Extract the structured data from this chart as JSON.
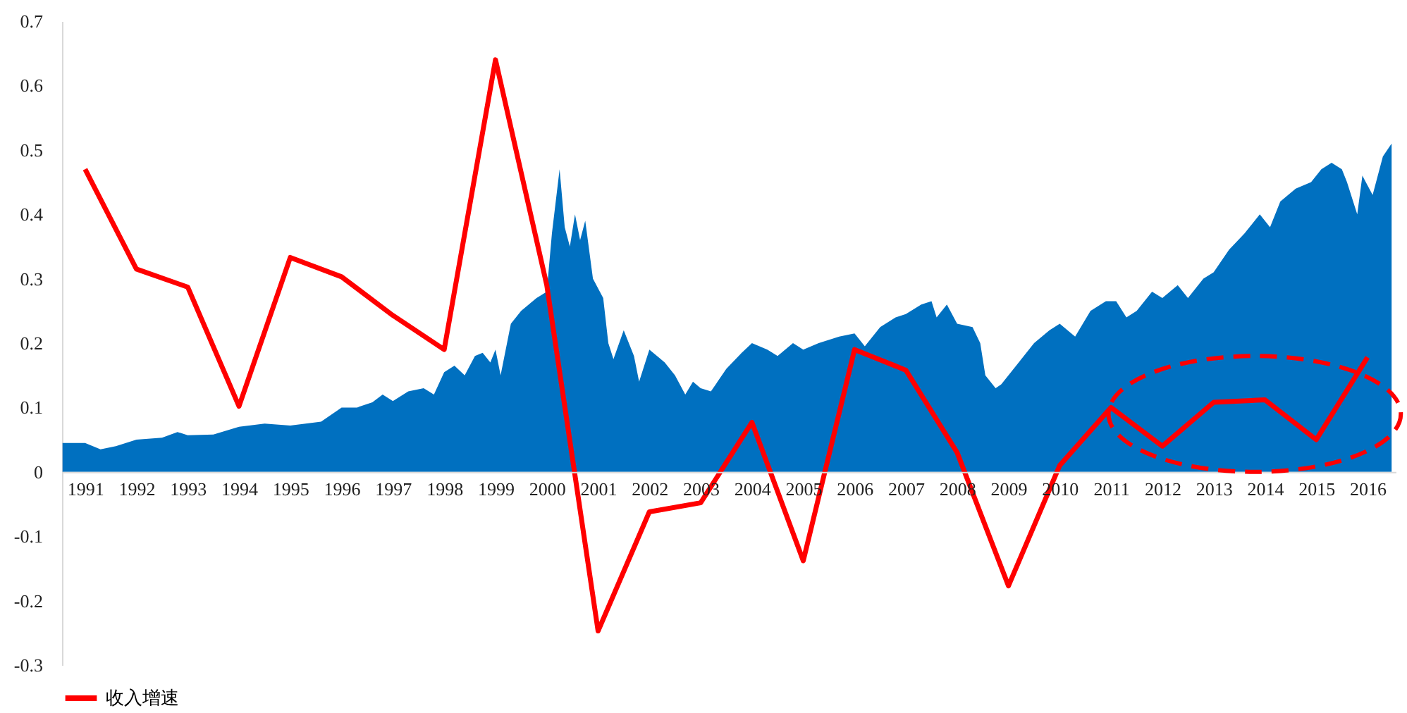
{
  "chart_data": {
    "type": "line",
    "legend": "bottom",
    "xlim": [
      1990.55,
      2016.55
    ],
    "ylim": [
      -0.3,
      0.7
    ],
    "xticks": [
      1991,
      1992,
      1993,
      1994,
      1995,
      1996,
      1997,
      1998,
      1999,
      2000,
      2001,
      2002,
      2003,
      2004,
      2005,
      2006,
      2007,
      2008,
      2009,
      2010,
      2011,
      2012,
      2013,
      2014,
      2015,
      2016
    ],
    "yticks": [
      -0.3,
      -0.2,
      -0.1,
      0,
      0.1,
      0.2,
      0.3,
      0.4,
      0.5,
      0.6,
      0.7
    ],
    "series": [
      {
        "type": "area",
        "color": "#0070c0",
        "x": [
          1990.56,
          1991,
          1991.3,
          1991.6,
          1992,
          1992.5,
          1992.8,
          1993,
          1993.5,
          1994,
          1994.5,
          1995,
          1995.3,
          1995.6,
          1996,
          1996.3,
          1996.6,
          1996.8,
          1997,
          1997.3,
          1997.6,
          1997.8,
          1998,
          1998.2,
          1998.4,
          1998.6,
          1998.75,
          1998.9,
          1999,
          1999.1,
          1999.3,
          1999.5,
          1999.8,
          2000,
          2000.1,
          2000.25,
          2000.35,
          2000.45,
          2000.55,
          2000.65,
          2000.75,
          2000.9,
          2001.1,
          2001.2,
          2001.3,
          2001.5,
          2001.7,
          2001.8,
          2002,
          2002.3,
          2002.5,
          2002.7,
          2002.85,
          2003,
          2003.2,
          2003.5,
          2003.8,
          2004,
          2004.3,
          2004.5,
          2004.8,
          2005,
          2005.3,
          2005.7,
          2006,
          2006.2,
          2006.5,
          2006.8,
          2007,
          2007.3,
          2007.5,
          2007.6,
          2007.8,
          2008,
          2008.3,
          2008.45,
          2008.55,
          2008.75,
          2008.86,
          2009.2,
          2009.5,
          2009.8,
          2010,
          2010.3,
          2010.6,
          2010.9,
          2011.1,
          2011.3,
          2011.5,
          2011.8,
          2012,
          2012.3,
          2012.5,
          2012.8,
          2013,
          2013.3,
          2013.6,
          2013.9,
          2014.1,
          2014.3,
          2014.6,
          2014.9,
          2015.1,
          2015.3,
          2015.5,
          2015.6,
          2015.8,
          2015.9,
          2016.1,
          2016.3,
          2016.47
        ],
        "values": [
          0.045,
          0.045,
          0.035,
          0.04,
          0.05,
          0.053,
          0.062,
          0.057,
          0.058,
          0.07,
          0.075,
          0.072,
          0.075,
          0.078,
          0.1,
          0.1,
          0.108,
          0.12,
          0.11,
          0.125,
          0.13,
          0.12,
          0.155,
          0.165,
          0.15,
          0.18,
          0.185,
          0.17,
          0.19,
          0.15,
          0.23,
          0.25,
          0.27,
          0.28,
          0.37,
          0.47,
          0.38,
          0.35,
          0.4,
          0.36,
          0.39,
          0.3,
          0.27,
          0.2,
          0.175,
          0.22,
          0.18,
          0.14,
          0.19,
          0.17,
          0.15,
          0.12,
          0.14,
          0.13,
          0.125,
          0.16,
          0.185,
          0.2,
          0.19,
          0.18,
          0.2,
          0.19,
          0.2,
          0.21,
          0.215,
          0.195,
          0.225,
          0.24,
          0.245,
          0.26,
          0.265,
          0.24,
          0.26,
          0.23,
          0.225,
          0.2,
          0.15,
          0.13,
          0.136,
          0.17,
          0.2,
          0.22,
          0.23,
          0.21,
          0.25,
          0.265,
          0.265,
          0.24,
          0.25,
          0.28,
          0.27,
          0.29,
          0.27,
          0.3,
          0.31,
          0.345,
          0.37,
          0.4,
          0.38,
          0.42,
          0.44,
          0.45,
          0.47,
          0.48,
          0.47,
          0.45,
          0.4,
          0.46,
          0.43,
          0.49,
          0.51
        ]
      },
      {
        "type": "line",
        "name": "收入增速",
        "color": "#ff0000",
        "x": [
          1991,
          1992,
          1993,
          1994,
          1995,
          1996,
          1997,
          1998,
          1999,
          2000,
          2001,
          2002,
          2003,
          2004,
          2005,
          2006,
          2007,
          2008,
          2009,
          2010,
          2011,
          2012,
          2013,
          2014,
          2015,
          2016
        ],
        "values": [
          0.47,
          0.315,
          0.287,
          0.102,
          0.333,
          0.303,
          0.243,
          0.19,
          0.64,
          0.29,
          -0.247,
          -0.062,
          -0.048,
          0.077,
          -0.138,
          0.19,
          0.158,
          0.03,
          -0.177,
          0.01,
          0.1,
          0.04,
          0.108,
          0.112,
          0.05,
          0.178
        ]
      }
    ]
  }
}
